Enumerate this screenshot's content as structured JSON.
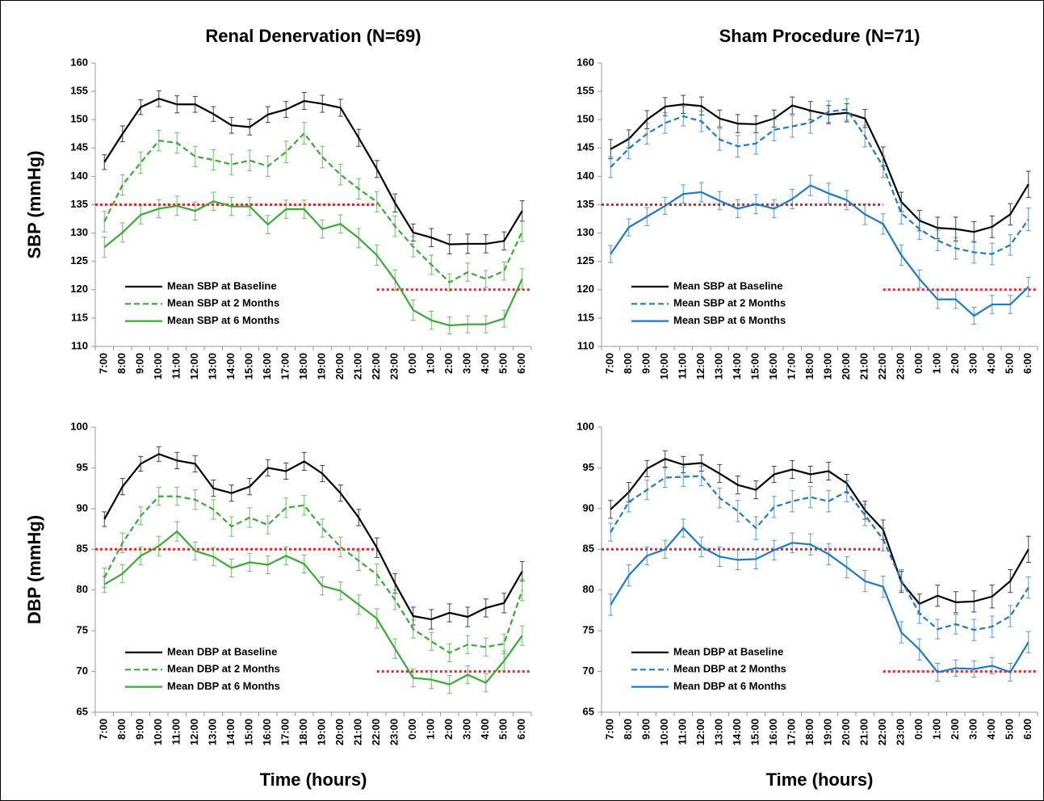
{
  "chart_data": [
    {
      "type": "line",
      "title": "Renal Denervation (N=69)",
      "ylabel": "SBP (mmHg)",
      "categories": [
        "7:00",
        "8:00",
        "9:00",
        "10:00",
        "11:00",
        "12:00",
        "13:00",
        "14:00",
        "15:00",
        "16:00",
        "17:00",
        "18:00",
        "19:00",
        "20:00",
        "21:00",
        "22:00",
        "23:00",
        "0:00",
        "1:00",
        "2:00",
        "3:00",
        "4:00",
        "5:00",
        "6:00"
      ],
      "ylim": [
        110,
        160
      ],
      "yticks": [
        110,
        115,
        120,
        125,
        130,
        135,
        140,
        145,
        150,
        155,
        160
      ],
      "ref_lines": [
        {
          "value": 135,
          "start": "7:00",
          "end": "22:00",
          "color": "#e8232a"
        },
        {
          "value": 120,
          "start": "22:00",
          "end": "6:00",
          "color": "#e8232a"
        }
      ],
      "series": [
        {
          "name": "Mean SBP at Baseline",
          "color": "#000000",
          "dashed": false,
          "values": [
            142.5,
            147.5,
            152.2,
            153.7,
            152.7,
            152.7,
            151,
            149,
            148.7,
            150.9,
            151.8,
            153.3,
            152.8,
            152.1,
            146.8,
            141.3,
            135.3,
            130.1,
            129.2,
            128,
            128.1,
            128.1,
            128.6,
            133.9
          ],
          "errors": [
            1.3,
            1.4,
            1.3,
            1.4,
            1.5,
            1.4,
            1.3,
            1.4,
            1.4,
            1.4,
            1.4,
            1.5,
            1.5,
            1.5,
            1.5,
            1.5,
            1.6,
            1.5,
            1.6,
            1.7,
            1.7,
            1.6,
            1.6,
            1.8
          ]
        },
        {
          "name": "Mean SBP at 2 Months",
          "color": "#3aa935",
          "dashed": true,
          "values": [
            132,
            138.5,
            142.4,
            146.3,
            145.9,
            143.5,
            142.9,
            142.1,
            142.8,
            141.8,
            144.3,
            147.6,
            143.4,
            140.3,
            137.8,
            135.5,
            131.2,
            127.6,
            124.4,
            121.3,
            123.1,
            121.9,
            123.3,
            130.3
          ],
          "errors": [
            1.8,
            1.8,
            1.9,
            1.8,
            1.8,
            1.8,
            1.8,
            1.8,
            1.8,
            1.8,
            1.9,
            1.9,
            1.9,
            1.8,
            1.8,
            1.8,
            1.8,
            1.8,
            1.7,
            1.5,
            1.6,
            1.5,
            1.6,
            1.8
          ]
        },
        {
          "name": "Mean SBP at 6 Months",
          "color": "#3aa935",
          "dashed": false,
          "values": [
            127.5,
            130.1,
            133.2,
            134.3,
            134.8,
            133.9,
            135.6,
            134.7,
            134.7,
            131.5,
            134.2,
            134.2,
            130.7,
            131.6,
            129.1,
            126.1,
            121.7,
            116.4,
            114.6,
            113.7,
            113.9,
            113.9,
            114.9,
            121.9
          ],
          "errors": [
            1.8,
            1.7,
            1.6,
            1.6,
            1.7,
            1.6,
            1.6,
            1.6,
            1.6,
            1.6,
            1.6,
            1.6,
            1.6,
            1.6,
            1.7,
            1.8,
            1.8,
            1.8,
            1.6,
            1.5,
            1.5,
            1.5,
            1.5,
            1.8
          ]
        }
      ]
    },
    {
      "type": "line",
      "title": "Sham Procedure (N=71)",
      "categories": [
        "7:00",
        "8:00",
        "9:00",
        "10:00",
        "11:00",
        "12:00",
        "13:00",
        "14:00",
        "15:00",
        "16:00",
        "17:00",
        "18:00",
        "19:00",
        "20:00",
        "21:00",
        "22:00",
        "23:00",
        "0:00",
        "1:00",
        "2:00",
        "3:00",
        "4:00",
        "5:00",
        "6:00"
      ],
      "ylim": [
        110,
        160
      ],
      "yticks": [
        110,
        115,
        120,
        125,
        130,
        135,
        140,
        145,
        150,
        155,
        160
      ],
      "ref_lines": [
        {
          "value": 135,
          "start": "7:00",
          "end": "22:00",
          "color": "#e8232a"
        },
        {
          "value": 120,
          "start": "22:00",
          "end": "6:00",
          "color": "#e8232a"
        }
      ],
      "series": [
        {
          "name": "Mean SBP at Baseline",
          "color": "#000000",
          "dashed": false,
          "values": [
            144.8,
            146.6,
            150,
            152.3,
            152.7,
            152.4,
            150.2,
            149.3,
            149.2,
            150.2,
            152.5,
            151.6,
            150.9,
            151.2,
            150.2,
            143.5,
            135.5,
            132.2,
            130.9,
            130.7,
            130.2,
            131.1,
            133.3,
            138.6
          ],
          "errors": [
            1.7,
            1.6,
            1.6,
            1.6,
            1.6,
            1.6,
            1.5,
            1.6,
            1.5,
            1.5,
            1.5,
            1.6,
            1.6,
            1.6,
            1.6,
            1.7,
            1.7,
            1.8,
            1.9,
            2.1,
            1.8,
            1.9,
            1.9,
            2.3
          ]
        },
        {
          "name": "Mean SBP at 2 Months",
          "color": "#1f78c8",
          "dashed": true,
          "values": [
            141.6,
            144.9,
            147.5,
            149.4,
            150.6,
            149.7,
            146.5,
            145.3,
            145.8,
            148.2,
            148.8,
            149.5,
            151.4,
            151.8,
            147.1,
            141.7,
            133.5,
            130.7,
            128.7,
            127.3,
            126.6,
            126.3,
            127.9,
            132.4
          ],
          "errors": [
            1.8,
            1.8,
            1.8,
            1.8,
            1.7,
            1.8,
            1.9,
            1.9,
            1.9,
            1.9,
            1.9,
            1.9,
            1.9,
            1.9,
            1.9,
            1.9,
            1.9,
            1.8,
            1.8,
            1.9,
            1.9,
            1.9,
            1.8,
            2
          ]
        },
        {
          "name": "Mean SBP at 6 Months",
          "color": "#1f78c8",
          "dashed": false,
          "values": [
            126.3,
            131,
            132.9,
            134.8,
            136.9,
            137.2,
            135.7,
            134.3,
            135.1,
            134.3,
            136,
            138.4,
            137,
            135.8,
            133.3,
            131.6,
            126.1,
            121.9,
            118.3,
            118.3,
            115.4,
            117.4,
            117.4,
            120.5
          ],
          "errors": [
            1.5,
            1.5,
            1.6,
            1.5,
            1.6,
            1.7,
            1.6,
            1.6,
            1.7,
            1.6,
            1.7,
            1.8,
            1.8,
            1.7,
            1.8,
            1.8,
            1.8,
            1.6,
            1.6,
            1.6,
            1.5,
            1.6,
            1.6,
            1.7
          ]
        }
      ]
    },
    {
      "type": "line",
      "ylabel": "DBP (mmHg)",
      "xlabel": "Time (hours)",
      "categories": [
        "7:00",
        "8:00",
        "9:00",
        "10:00",
        "11:00",
        "12:00",
        "13:00",
        "14:00",
        "15:00",
        "16:00",
        "17:00",
        "18:00",
        "19:00",
        "20:00",
        "21:00",
        "22:00",
        "23:00",
        "0:00",
        "1:00",
        "2:00",
        "3:00",
        "4:00",
        "5:00",
        "6:00"
      ],
      "ylim": [
        65,
        100
      ],
      "yticks": [
        65,
        70,
        75,
        80,
        85,
        90,
        95,
        100
      ],
      "ref_lines": [
        {
          "value": 85,
          "start": "7:00",
          "end": "22:00",
          "color": "#e8232a"
        },
        {
          "value": 70,
          "start": "22:00",
          "end": "6:00",
          "color": "#e8232a"
        }
      ],
      "series": [
        {
          "name": "Mean DBP at Baseline",
          "color": "#000000",
          "dashed": false,
          "values": [
            88.7,
            92.7,
            95.5,
            96.7,
            95.9,
            95.5,
            92.5,
            91.9,
            92.7,
            95,
            94.6,
            95.8,
            94.3,
            91.9,
            88.9,
            85.2,
            80.8,
            76.8,
            76.4,
            77.2,
            76.7,
            77.8,
            78.4,
            82.3
          ],
          "errors": [
            0.9,
            1,
            0.9,
            0.9,
            1,
            1,
            1,
            1,
            1,
            1,
            1,
            1.1,
            1,
            1,
            1,
            1.2,
            1.2,
            1.1,
            1.2,
            1.1,
            1.2,
            1.1,
            1.2,
            1.2
          ]
        },
        {
          "name": "Mean DBP at 2 Months",
          "color": "#3aa935",
          "dashed": true,
          "values": [
            81.5,
            85.8,
            89.1,
            91.5,
            91.5,
            91.1,
            89.9,
            87.8,
            88.9,
            88,
            90.1,
            90.4,
            87.6,
            85.3,
            83.6,
            81.9,
            78.8,
            75.2,
            73.7,
            72.3,
            73.3,
            73,
            73.4,
            80
          ],
          "errors": [
            1.2,
            1.2,
            1.1,
            1.1,
            1.1,
            1.2,
            1.2,
            1.2,
            1.2,
            1.1,
            1.2,
            1.2,
            1.1,
            1.2,
            1.2,
            1.3,
            1.2,
            1.1,
            1.1,
            1.1,
            1.1,
            1.1,
            1.2,
            1.3
          ]
        },
        {
          "name": "Mean DBP at 6 Months",
          "color": "#3aa935",
          "dashed": false,
          "values": [
            80.7,
            82,
            84.2,
            85.4,
            87.2,
            84.8,
            84.1,
            82.7,
            83.4,
            83.1,
            84.2,
            83.2,
            80.5,
            79.9,
            78.2,
            76.5,
            72.8,
            69.2,
            69,
            68.4,
            69.6,
            68.6,
            71.3,
            74.4
          ],
          "errors": [
            1,
            1.1,
            1.1,
            1.2,
            1.2,
            1.1,
            1.1,
            1.1,
            1.1,
            1.1,
            1.1,
            1.1,
            1.1,
            1.1,
            1.2,
            1.2,
            1.2,
            1.1,
            1.1,
            1.1,
            1.1,
            1.1,
            1.2,
            1.2
          ]
        }
      ]
    },
    {
      "type": "line",
      "xlabel": "Time (hours)",
      "categories": [
        "7:00",
        "8:00",
        "9:00",
        "10:00",
        "11:00",
        "12:00",
        "13:00",
        "14:00",
        "15:00",
        "16:00",
        "17:00",
        "18:00",
        "19:00",
        "20:00",
        "21:00",
        "22:00",
        "23:00",
        "0:00",
        "1:00",
        "2:00",
        "3:00",
        "4:00",
        "5:00",
        "6:00"
      ],
      "ylim": [
        65,
        100
      ],
      "yticks": [
        65,
        70,
        75,
        80,
        85,
        90,
        95,
        100
      ],
      "ref_lines": [
        {
          "value": 85,
          "start": "7:00",
          "end": "22:00",
          "color": "#e8232a"
        },
        {
          "value": 70,
          "start": "22:00",
          "end": "6:00",
          "color": "#e8232a"
        }
      ],
      "series": [
        {
          "name": "Mean DBP at Baseline",
          "color": "#000000",
          "dashed": false,
          "values": [
            89.9,
            92,
            94.9,
            96.1,
            95.4,
            95.6,
            94.3,
            92.9,
            92.3,
            94.2,
            94.8,
            94.2,
            94.6,
            93.1,
            89.8,
            87.4,
            81,
            78.3,
            79.3,
            78.5,
            78.6,
            79.2,
            81.1,
            85
          ],
          "errors": [
            1.1,
            1.2,
            1,
            1,
            1,
            1,
            1.1,
            1.1,
            1.1,
            1,
            1.1,
            1,
            1.1,
            1.1,
            1.1,
            1.2,
            1.3,
            1.2,
            1.3,
            1.3,
            1.3,
            1.4,
            1.4,
            1.6
          ]
        },
        {
          "name": "Mean DBP at 2 Months",
          "color": "#1f78c8",
          "dashed": true,
          "values": [
            87.1,
            90.8,
            92.3,
            93.8,
            93.9,
            94,
            91.3,
            89.7,
            87.6,
            90.2,
            90.9,
            91.4,
            90.9,
            92.1,
            89.2,
            86.2,
            81.2,
            77.1,
            75.2,
            75.8,
            75.1,
            75.5,
            76.8,
            80.3
          ],
          "errors": [
            1.1,
            1.2,
            1.2,
            1.2,
            1.2,
            1.2,
            1.2,
            1.3,
            1.4,
            1.3,
            1.3,
            1.3,
            1.3,
            1.3,
            1.3,
            1.4,
            1.3,
            1.2,
            1.2,
            1.2,
            1.3,
            1.3,
            1.3,
            1.3
          ]
        },
        {
          "name": "Mean DBP at 6 Months",
          "color": "#1f78c8",
          "dashed": false,
          "values": [
            78.2,
            81.8,
            84.2,
            85,
            87.6,
            85.3,
            84.1,
            83.7,
            83.8,
            84.9,
            85.8,
            85.6,
            84.4,
            82.8,
            81.1,
            80.4,
            74.8,
            72.7,
            69.9,
            70.4,
            70.3,
            70.7,
            69.9,
            73.6
          ],
          "errors": [
            1.3,
            1.3,
            1.1,
            1.1,
            1.1,
            1.2,
            1.2,
            1.2,
            1.2,
            1.2,
            1.2,
            1.3,
            1.3,
            1.3,
            1.3,
            1.3,
            1.3,
            1.3,
            1.1,
            1,
            1,
            1,
            1.1,
            1.3
          ]
        }
      ]
    }
  ]
}
